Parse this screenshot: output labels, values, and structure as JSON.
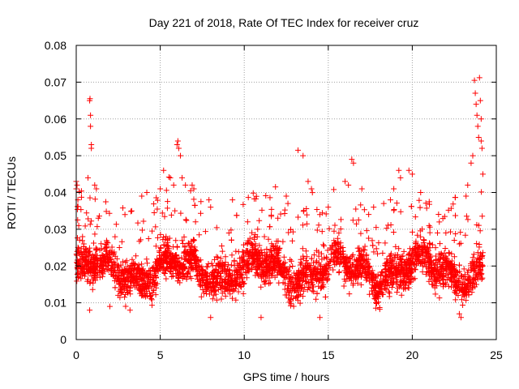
{
  "chart_data": {
    "type": "scatter",
    "title": "Day 221 of 2018, Rate Of TEC Index for receiver cruz",
    "xlabel": "GPS time / hours",
    "ylabel": "ROTI / TECUs",
    "xlim": [
      0,
      25
    ],
    "ylim": [
      0,
      0.08
    ],
    "xticks": [
      0,
      5,
      10,
      15,
      20,
      25
    ],
    "xtick_labels": [
      "0",
      "5",
      "10",
      "15",
      "20",
      "25"
    ],
    "yticks": [
      0,
      0.01,
      0.02,
      0.03,
      0.04,
      0.05,
      0.06,
      0.07,
      0.08
    ],
    "ytick_labels": [
      "0",
      "0.01",
      "0.02",
      "0.03",
      "0.04",
      "0.05",
      "0.06",
      "0.07",
      "0.08"
    ],
    "grid": true,
    "marker": "plus",
    "color": "#ff0000",
    "series": [
      {
        "name": "ROTI",
        "description": "dense band of points mostly between 0.01 and 0.03 TECU/min across 0-24 h",
        "points": [
          [
            0.0,
            0.041
          ],
          [
            0.0,
            0.043
          ],
          [
            0.05,
            0.042
          ],
          [
            0.1,
            0.038
          ],
          [
            0.15,
            0.031
          ],
          [
            0.7,
            0.044
          ],
          [
            0.8,
            0.065
          ],
          [
            0.82,
            0.0655
          ],
          [
            0.85,
            0.061
          ],
          [
            0.85,
            0.058
          ],
          [
            0.9,
            0.052
          ],
          [
            0.9,
            0.053
          ],
          [
            1.1,
            0.042
          ],
          [
            1.2,
            0.041
          ],
          [
            2.9,
            0.034
          ],
          [
            3.3,
            0.035
          ],
          [
            3.9,
            0.039
          ],
          [
            4.2,
            0.04
          ],
          [
            5.0,
            0.041
          ],
          [
            5.2,
            0.046
          ],
          [
            5.6,
            0.044
          ],
          [
            5.8,
            0.042
          ],
          [
            6.0,
            0.053
          ],
          [
            6.05,
            0.054
          ],
          [
            6.1,
            0.052
          ],
          [
            6.2,
            0.05
          ],
          [
            6.3,
            0.044
          ],
          [
            6.5,
            0.042
          ],
          [
            6.9,
            0.042
          ],
          [
            7.0,
            0.041
          ],
          [
            7.1,
            0.032
          ],
          [
            7.9,
            0.038
          ],
          [
            8.0,
            0.036
          ],
          [
            9.3,
            0.038
          ],
          [
            9.5,
            0.024
          ],
          [
            10.2,
            0.032
          ],
          [
            10.8,
            0.03
          ],
          [
            11.2,
            0.028
          ],
          [
            12.0,
            0.033
          ],
          [
            12.5,
            0.039
          ],
          [
            12.6,
            0.037
          ],
          [
            13.2,
            0.0515
          ],
          [
            13.5,
            0.05
          ],
          [
            13.8,
            0.043
          ],
          [
            14.0,
            0.041
          ],
          [
            14.5,
            0.034
          ],
          [
            15.0,
            0.036
          ],
          [
            16.0,
            0.043
          ],
          [
            16.2,
            0.042
          ],
          [
            16.4,
            0.049
          ],
          [
            16.5,
            0.048
          ],
          [
            17.0,
            0.041
          ],
          [
            17.7,
            0.036
          ],
          [
            18.3,
            0.037
          ],
          [
            18.7,
            0.038
          ],
          [
            18.9,
            0.041
          ],
          [
            19.2,
            0.046
          ],
          [
            19.3,
            0.044
          ],
          [
            19.8,
            0.046
          ],
          [
            20.0,
            0.045
          ],
          [
            20.5,
            0.04
          ],
          [
            21.0,
            0.031
          ],
          [
            21.5,
            0.029
          ],
          [
            22.0,
            0.029
          ],
          [
            22.5,
            0.027
          ],
          [
            22.8,
            0.026
          ],
          [
            23.2,
            0.039
          ],
          [
            23.3,
            0.042
          ],
          [
            23.5,
            0.048
          ],
          [
            23.6,
            0.05
          ],
          [
            23.7,
            0.0705
          ],
          [
            23.75,
            0.067
          ],
          [
            23.8,
            0.064
          ],
          [
            23.85,
            0.061
          ],
          [
            23.9,
            0.058
          ],
          [
            23.95,
            0.055
          ],
          [
            24.0,
            0.0712
          ],
          [
            24.05,
            0.065
          ],
          [
            24.1,
            0.06
          ],
          [
            24.1,
            0.054
          ],
          [
            24.15,
            0.052
          ],
          [
            24.2,
            0.045
          ],
          [
            22.9,
            0.006
          ],
          [
            22.8,
            0.007
          ],
          [
            8.0,
            0.006
          ],
          [
            11.0,
            0.006
          ],
          [
            0.8,
            0.008
          ],
          [
            2.0,
            0.009
          ],
          [
            3.2,
            0.008
          ],
          [
            14.5,
            0.006
          ]
        ],
        "band": {
          "x_range": [
            0,
            24.2
          ],
          "y_core": [
            0.012,
            0.026
          ],
          "y_outer": [
            0.007,
            0.036
          ],
          "count": 3200
        }
      }
    ]
  }
}
